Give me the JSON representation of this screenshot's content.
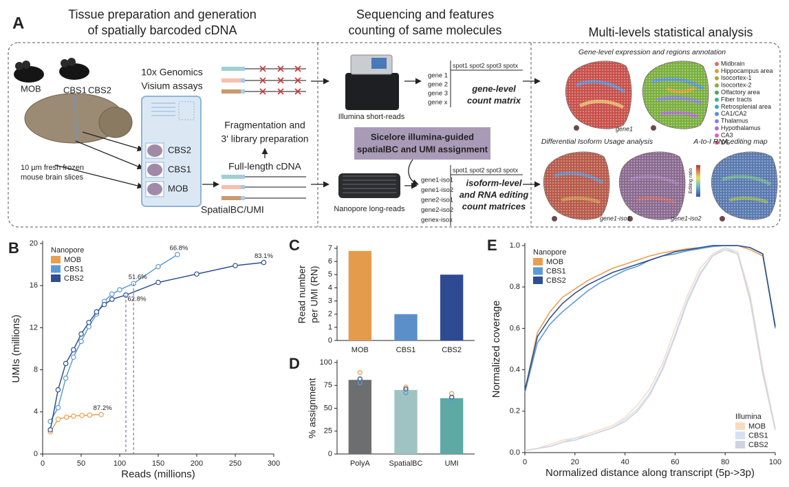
{
  "panel_a": {
    "label": "A",
    "headings": [
      [
        "Tissue preparation and generation",
        "of spatially barcoded cDNA"
      ],
      [
        "Sequencing and features",
        "counting of same molecules"
      ],
      [
        "Multi-levels statistical analysis"
      ]
    ],
    "samples": [
      {
        "name": "MOB",
        "color": "#e8a050"
      },
      {
        "name": "CBS1",
        "color": "#5b9bd5"
      },
      {
        "name": "CBS2",
        "color": "#2e4f92"
      }
    ],
    "visium": [
      "10x Genomics",
      "Visium assays"
    ],
    "slide_labels": [
      {
        "name": "CBS2",
        "color": "#2e4f92"
      },
      {
        "name": "CBS1",
        "color": "#5b9bd5"
      },
      {
        "name": "MOB",
        "color": "#e8a050"
      }
    ],
    "slices": [
      "10 µm fresh frozen",
      "mouse brain slices"
    ],
    "fragmentation": [
      "Fragmentation and",
      "3' library preparation"
    ],
    "full_length": "Full-length cDNA",
    "barcode": "SpatialBC/UMI",
    "illumina": "Illumina short-reads",
    "nanopore": "Nanopore long-reads",
    "gene_matrix": {
      "header": "spot1 spot2 spot3 spotx",
      "rows": [
        "gene 1",
        "gene 2",
        "gene 3",
        "gene x"
      ],
      "title": [
        "gene-level",
        "count matrix"
      ]
    },
    "isoform_matrix": {
      "header": "spot1 spot2 spot3 spotx",
      "rows": [
        "gene1-iso1",
        "gene1-iso2",
        "gene2-iso1",
        "gene2-iso2",
        "genex-isox"
      ],
      "title": [
        "isoform-level",
        "and RNA editing",
        "count matrices"
      ]
    },
    "sicelore": [
      "Sicelore illumina-guided",
      "spatialBC and UMI assignment"
    ],
    "expression_title": "Gene-level expression and regions annotation",
    "regions": [
      {
        "name": "Midbrain",
        "color": "#e06b6b"
      },
      {
        "name": "Hippocampus area",
        "color": "#d8a03a"
      },
      {
        "name": "Isocortex-1",
        "color": "#a8a83a"
      },
      {
        "name": "Isocortex-2",
        "color": "#7bb03f"
      },
      {
        "name": "Olfactory area",
        "color": "#4aa85a"
      },
      {
        "name": "Fiber tracts",
        "color": "#3fae9a"
      },
      {
        "name": "Retrosplenial area",
        "color": "#3aa8c0"
      },
      {
        "name": "CA1/CA2",
        "color": "#5a8ee0"
      },
      {
        "name": "Thalamus",
        "color": "#8a7fe0"
      },
      {
        "name": "Hypothalamus",
        "color": "#b06ad8"
      },
      {
        "name": "CA3",
        "color": "#d860c0"
      },
      {
        "name": "DG",
        "color": "#e0609a"
      }
    ],
    "gene_label": "gene1",
    "diu_title": "Differential Isoform Usage analysis",
    "editing_title": "A-to-I RNA editing map",
    "editing_legend": "Editing ratio",
    "isoform_labels": [
      "gene1-iso1",
      "gene1-iso2"
    ]
  },
  "chart_data": [
    {
      "type": "line",
      "panel": "B",
      "markers": true,
      "xlabel": "Reads (millions)",
      "ylabel": "UMIs (millions)",
      "xlim": [
        0,
        300
      ],
      "xticks": [
        0,
        50,
        100,
        150,
        200,
        250,
        300
      ],
      "ylim": [
        0,
        20
      ],
      "yticks": [
        0,
        4,
        8,
        12,
        16,
        20
      ],
      "series_groups": [
        {
          "name": "Nanopore",
          "legend": "upper left",
          "series": [
            {
              "name": "MOB",
              "color": "#e8a050",
              "x": [
                10,
                20,
                31,
                40,
                51,
                61,
                76
              ],
              "values": [
                2.1,
                3.3,
                3.5,
                3.6,
                3.66,
                3.7,
                3.75
              ]
            },
            {
              "name": "CBS1",
              "color": "#5b9bd5",
              "x": [
                10,
                20,
                30,
                40,
                50,
                60,
                70,
                80,
                90,
                100,
                118,
                150,
                175
              ],
              "values": [
                3.1,
                4.4,
                7.2,
                9.2,
                10.7,
                12.1,
                13.3,
                14.5,
                15.2,
                15.6,
                16.2,
                17.8,
                18.95
              ]
            },
            {
              "name": "CBS2",
              "color": "#2e4f92",
              "x": [
                10,
                20,
                30,
                40,
                50,
                60,
                70,
                80,
                90,
                108,
                150,
                200,
                250,
                287
              ],
              "values": [
                2.3,
                6.1,
                8.6,
                9.9,
                11.4,
                12.5,
                13.5,
                14.2,
                14.7,
                15.1,
                16.3,
                17.1,
                17.9,
                18.2
              ]
            }
          ]
        }
      ],
      "annotations": [
        {
          "text": "87.2%",
          "x": 76,
          "y": 3.75
        },
        {
          "text": "66.8%",
          "x": 175,
          "y": 18.95
        },
        {
          "text": "51.6%",
          "x": 118,
          "y": 16.2,
          "drop_line": true
        },
        {
          "text": "62.8%",
          "x": 108,
          "y": 15.1,
          "drop_line": true
        },
        {
          "text": "83.1%",
          "x": 287,
          "y": 18.2
        }
      ]
    },
    {
      "type": "bar",
      "panel": "C",
      "ylabel": [
        "Read number",
        "per UMI (RN)"
      ],
      "categories": [
        "MOB",
        "CBS1",
        "CBS2"
      ],
      "values": [
        6.8,
        2.0,
        5.0
      ],
      "colors": [
        "#e59b4c",
        "#5b8fc9",
        "#2d4a93"
      ],
      "ylim": [
        0,
        7
      ],
      "yticks": [
        0,
        1,
        2,
        3,
        4,
        5,
        6,
        7
      ]
    },
    {
      "type": "bar",
      "panel": "D",
      "ylabel": "% assignment",
      "categories": [
        "PolyA",
        "SpatialBC",
        "UMI"
      ],
      "values": [
        81,
        70,
        61
      ],
      "colors": [
        "#6d6e70",
        "#9fc3c3",
        "#5fa9a4"
      ],
      "sample_points": [
        {
          "color": "#e8a050",
          "values": [
            89,
            73,
            66
          ]
        },
        {
          "color": "#2e4f92",
          "values": [
            82,
            71,
            62
          ]
        },
        {
          "color": "#5b9bd5",
          "values": [
            78,
            67,
            58
          ]
        }
      ],
      "ylim": [
        0,
        100
      ],
      "yticks": [
        0,
        25,
        50,
        75,
        100
      ]
    },
    {
      "type": "line",
      "panel": "E",
      "markers": false,
      "xlabel": "Normalized distance along transcript (5p->3p)",
      "ylabel": "Normalized coverage",
      "xlim": [
        0,
        100
      ],
      "xticks": [
        0,
        20,
        40,
        60,
        80,
        100
      ],
      "ylim": [
        0,
        1
      ],
      "yticks": [
        {
          "value": 0,
          "label": "0.0"
        },
        0.2,
        0.4,
        0.6,
        0.8,
        {
          "value": 1,
          "label": "1.0"
        }
      ],
      "x": [
        0,
        5,
        10,
        15,
        20,
        25,
        30,
        35,
        40,
        45,
        50,
        55,
        60,
        65,
        70,
        75,
        80,
        85,
        90,
        95,
        100
      ],
      "series_groups": [
        {
          "name": "Nanopore",
          "legend": "upper left",
          "series": [
            {
              "name": "MOB",
              "color": "#e8a050",
              "values": [
                0.3,
                0.58,
                0.68,
                0.75,
                0.79,
                0.83,
                0.86,
                0.89,
                0.91,
                0.93,
                0.95,
                0.965,
                0.975,
                0.985,
                0.99,
                1.0,
                1.0,
                1.0,
                0.98,
                0.95,
                0.61
              ]
            },
            {
              "name": "CBS1",
              "color": "#5b9bd5",
              "values": [
                0.29,
                0.53,
                0.62,
                0.68,
                0.73,
                0.78,
                0.82,
                0.85,
                0.88,
                0.9,
                0.93,
                0.95,
                0.96,
                0.975,
                0.985,
                0.995,
                1.0,
                1.0,
                0.99,
                0.96,
                0.6
              ]
            },
            {
              "name": "CBS2",
              "color": "#2e4f92",
              "values": [
                0.3,
                0.56,
                0.65,
                0.72,
                0.77,
                0.81,
                0.84,
                0.87,
                0.89,
                0.91,
                0.93,
                0.95,
                0.97,
                0.98,
                0.99,
                1.0,
                1.0,
                1.0,
                0.99,
                0.96,
                0.61
              ]
            }
          ]
        },
        {
          "name": "Illumina",
          "legend": "lower right",
          "series": [
            {
              "name": "MOB",
              "color": "#f7dcc4",
              "values": [
                0.01,
                0.02,
                0.04,
                0.06,
                0.07,
                0.09,
                0.11,
                0.13,
                0.17,
                0.23,
                0.31,
                0.43,
                0.6,
                0.76,
                0.89,
                0.96,
                0.99,
                0.97,
                0.76,
                0.41,
                0.12
              ]
            },
            {
              "name": "CBS1",
              "color": "#d4e1f2",
              "values": [
                0.01,
                0.02,
                0.03,
                0.05,
                0.07,
                0.08,
                0.1,
                0.12,
                0.16,
                0.21,
                0.29,
                0.41,
                0.57,
                0.74,
                0.87,
                0.95,
                0.99,
                0.96,
                0.73,
                0.38,
                0.11
              ]
            },
            {
              "name": "CBS2",
              "color": "#cfd3e0",
              "values": [
                0.01,
                0.02,
                0.03,
                0.05,
                0.06,
                0.08,
                0.1,
                0.12,
                0.15,
                0.2,
                0.28,
                0.4,
                0.56,
                0.73,
                0.86,
                0.95,
                0.98,
                0.96,
                0.74,
                0.39,
                0.11
              ]
            }
          ]
        }
      ]
    }
  ]
}
